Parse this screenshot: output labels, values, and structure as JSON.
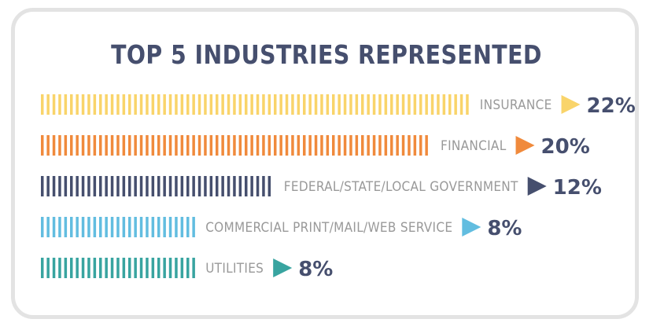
{
  "chart_data": {
    "type": "bar",
    "orientation": "horizontal",
    "title": "TOP 5 INDUSTRIES REPRESENTED",
    "categories": [
      "INSURANCE",
      "FINANCIAL",
      "FEDERAL/STATE/LOCAL GOVERNMENT",
      "COMMERCIAL PRINT/MAIL/WEB SERVICE",
      "UTILITIES"
    ],
    "values": [
      22,
      20,
      12,
      8,
      8
    ],
    "value_labels": [
      "22%",
      "20%",
      "12%",
      "8%",
      "8%"
    ],
    "unit": "%",
    "colors": [
      "#f9d46a",
      "#f08a3c",
      "#464f6e",
      "#62bde0",
      "#38a4a0"
    ],
    "grid": false,
    "legend": "none"
  }
}
